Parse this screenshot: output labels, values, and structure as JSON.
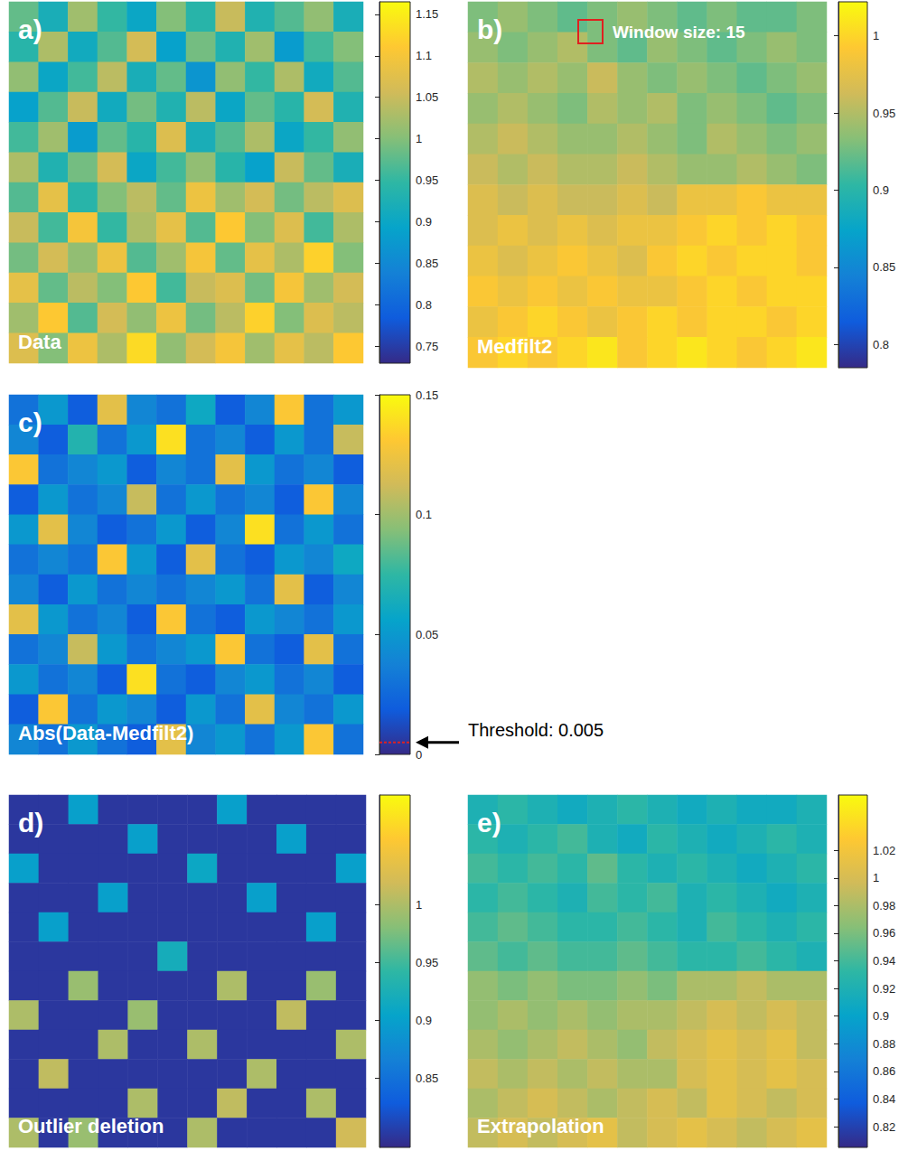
{
  "chart_data": [
    {
      "type": "heatmap",
      "panel": "a)",
      "title": "Data",
      "color_range": [
        0.73,
        1.165
      ],
      "color_ticks": [
        0.75,
        0.8,
        0.85,
        0.9,
        0.95,
        1,
        1.05,
        1.1,
        1.15
      ],
      "cells": [
        [
          0.98,
          0.92,
          1.02,
          0.95,
          0.9,
          1.0,
          0.94,
          1.05,
          0.93,
          0.97,
          1.01,
          0.92
        ],
        [
          0.94,
          1.03,
          0.91,
          0.97,
          1.06,
          0.89,
          0.99,
          0.93,
          1.02,
          0.88,
          0.96,
          1.0
        ],
        [
          1.01,
          0.9,
          0.96,
          1.04,
          0.92,
          0.98,
          0.87,
          1.01,
          0.95,
          1.03,
          0.91,
          0.97
        ],
        [
          0.89,
          0.97,
          1.05,
          0.91,
          0.99,
          0.93,
          1.04,
          0.9,
          0.98,
          0.94,
          1.06,
          0.93
        ],
        [
          0.96,
          1.02,
          0.88,
          0.98,
          0.94,
          1.07,
          0.92,
          0.97,
          1.03,
          0.9,
          0.95,
          1.01
        ],
        [
          1.03,
          0.93,
          0.99,
          1.06,
          0.9,
          0.96,
          1.01,
          0.94,
          0.89,
          1.05,
          0.98,
          0.92
        ],
        [
          0.97,
          1.08,
          0.94,
          1.0,
          1.04,
          0.98,
          1.09,
          1.02,
          1.06,
          0.99,
          1.04,
          1.07
        ],
        [
          1.05,
          0.96,
          1.1,
          0.95,
          1.03,
          1.08,
          0.97,
          1.11,
          1.0,
          1.07,
          0.96,
          1.03
        ],
        [
          0.99,
          1.06,
          1.01,
          1.09,
          0.97,
          1.02,
          1.1,
          0.98,
          1.08,
          1.03,
          1.12,
          1.0
        ],
        [
          1.08,
          0.98,
          1.04,
          1.0,
          1.11,
          0.96,
          1.05,
          1.07,
          0.99,
          1.1,
          1.02,
          1.06
        ],
        [
          1.02,
          1.11,
          0.97,
          1.06,
          1.01,
          1.09,
          0.99,
          1.04,
          1.12,
          1.0,
          1.07,
          1.04
        ],
        [
          1.07,
          1.0,
          1.09,
          1.03,
          1.13,
          1.01,
          1.06,
          1.1,
          1.02,
          1.08,
          1.04,
          1.11
        ]
      ]
    },
    {
      "type": "heatmap",
      "panel": "b)",
      "title": "Medfilt2",
      "annotation": "Window size: 15",
      "color_range": [
        0.785,
        1.022
      ],
      "color_ticks": [
        0.8,
        0.85,
        0.9,
        0.95,
        1
      ],
      "cells": [
        [
          0.93,
          0.94,
          0.93,
          0.92,
          0.93,
          0.94,
          0.93,
          0.92,
          0.93,
          0.92,
          0.92,
          0.93
        ],
        [
          0.94,
          0.93,
          0.94,
          0.95,
          0.93,
          0.92,
          0.94,
          0.93,
          0.92,
          0.93,
          0.94,
          0.93
        ],
        [
          0.95,
          0.94,
          0.95,
          0.94,
          0.96,
          0.94,
          0.93,
          0.94,
          0.93,
          0.92,
          0.93,
          0.94
        ],
        [
          0.94,
          0.95,
          0.94,
          0.93,
          0.95,
          0.94,
          0.95,
          0.93,
          0.94,
          0.93,
          0.92,
          0.93
        ],
        [
          0.95,
          0.96,
          0.95,
          0.94,
          0.94,
          0.95,
          0.94,
          0.93,
          0.95,
          0.94,
          0.93,
          0.94
        ],
        [
          0.96,
          0.95,
          0.96,
          0.95,
          0.95,
          0.96,
          0.95,
          0.94,
          0.94,
          0.95,
          0.94,
          0.93
        ],
        [
          0.97,
          0.96,
          0.97,
          0.96,
          0.96,
          0.97,
          0.96,
          0.98,
          0.98,
          0.99,
          0.98,
          0.98
        ],
        [
          0.97,
          0.98,
          0.97,
          0.98,
          0.97,
          0.98,
          0.98,
          0.99,
          1.0,
          0.99,
          1.0,
          0.99
        ],
        [
          0.98,
          0.97,
          0.98,
          0.99,
          0.98,
          0.97,
          0.99,
          1.0,
          0.99,
          1.0,
          1.0,
          0.99
        ],
        [
          0.99,
          0.98,
          0.99,
          0.98,
          0.99,
          0.98,
          0.98,
          0.99,
          1.0,
          0.99,
          1.0,
          1.0
        ],
        [
          0.98,
          0.99,
          1.0,
          0.99,
          0.98,
          0.99,
          1.0,
          0.99,
          1.0,
          1.0,
          0.99,
          1.0
        ],
        [
          0.99,
          1.0,
          0.99,
          1.0,
          1.01,
          0.99,
          1.0,
          1.01,
          1.0,
          0.99,
          1.0,
          1.01
        ]
      ]
    },
    {
      "type": "heatmap",
      "panel": "c)",
      "title": "Abs(Data-Medfilt2)",
      "threshold": {
        "label": "Threshold: 0.005",
        "value": 0.005
      },
      "color_range": [
        0,
        0.15
      ],
      "color_ticks": [
        0,
        0.05,
        0.1,
        0.15
      ],
      "cells": [
        [
          0.03,
          0.05,
          0.02,
          0.12,
          0.04,
          0.03,
          0.06,
          0.02,
          0.04,
          0.13,
          0.03,
          0.05
        ],
        [
          0.04,
          0.02,
          0.07,
          0.03,
          0.05,
          0.14,
          0.03,
          0.04,
          0.02,
          0.05,
          0.03,
          0.11
        ],
        [
          0.13,
          0.03,
          0.04,
          0.05,
          0.02,
          0.04,
          0.03,
          0.12,
          0.05,
          0.03,
          0.04,
          0.02
        ],
        [
          0.02,
          0.05,
          0.03,
          0.04,
          0.11,
          0.03,
          0.05,
          0.03,
          0.04,
          0.02,
          0.13,
          0.04
        ],
        [
          0.05,
          0.12,
          0.04,
          0.02,
          0.03,
          0.05,
          0.02,
          0.04,
          0.14,
          0.03,
          0.05,
          0.03
        ],
        [
          0.03,
          0.04,
          0.03,
          0.13,
          0.05,
          0.02,
          0.12,
          0.03,
          0.02,
          0.05,
          0.04,
          0.06
        ],
        [
          0.04,
          0.02,
          0.05,
          0.03,
          0.04,
          0.03,
          0.04,
          0.05,
          0.03,
          0.12,
          0.02,
          0.04
        ],
        [
          0.12,
          0.05,
          0.03,
          0.04,
          0.02,
          0.13,
          0.03,
          0.02,
          0.05,
          0.04,
          0.03,
          0.05
        ],
        [
          0.03,
          0.04,
          0.11,
          0.05,
          0.03,
          0.04,
          0.05,
          0.13,
          0.03,
          0.02,
          0.12,
          0.03
        ],
        [
          0.05,
          0.03,
          0.04,
          0.02,
          0.14,
          0.03,
          0.02,
          0.04,
          0.05,
          0.03,
          0.04,
          0.02
        ],
        [
          0.02,
          0.13,
          0.03,
          0.05,
          0.04,
          0.02,
          0.05,
          0.03,
          0.12,
          0.04,
          0.03,
          0.05
        ],
        [
          0.04,
          0.03,
          0.05,
          0.03,
          0.02,
          0.12,
          0.04,
          0.05,
          0.03,
          0.05,
          0.13,
          0.03
        ]
      ]
    },
    {
      "type": "heatmap",
      "panel": "d)",
      "title": "Outlier deletion",
      "color_range": [
        0.79,
        1.095
      ],
      "color_ticks": [
        0.85,
        0.9,
        0.95,
        1
      ],
      "cells": [
        [
          0.8,
          0.8,
          0.9,
          0.8,
          0.8,
          0.8,
          0.8,
          0.9,
          0.8,
          0.8,
          0.8,
          0.8
        ],
        [
          0.8,
          0.8,
          0.8,
          0.8,
          0.9,
          0.8,
          0.8,
          0.8,
          0.8,
          0.9,
          0.8,
          0.8
        ],
        [
          0.9,
          0.8,
          0.8,
          0.8,
          0.8,
          0.8,
          0.91,
          0.8,
          0.8,
          0.8,
          0.8,
          0.9
        ],
        [
          0.8,
          0.8,
          0.8,
          0.9,
          0.8,
          0.8,
          0.8,
          0.8,
          0.9,
          0.8,
          0.8,
          0.8
        ],
        [
          0.8,
          0.9,
          0.8,
          0.8,
          0.8,
          0.8,
          0.8,
          0.8,
          0.8,
          0.8,
          0.9,
          0.8
        ],
        [
          0.8,
          0.8,
          0.8,
          0.8,
          0.8,
          0.92,
          0.8,
          0.8,
          0.8,
          0.8,
          0.8,
          0.8
        ],
        [
          0.8,
          0.8,
          0.99,
          0.8,
          0.8,
          0.8,
          0.8,
          1.0,
          0.8,
          0.8,
          0.99,
          0.8
        ],
        [
          1.0,
          0.8,
          0.8,
          0.8,
          0.99,
          0.8,
          0.8,
          0.8,
          0.8,
          1.01,
          0.8,
          0.8
        ],
        [
          0.8,
          0.8,
          0.8,
          1.0,
          0.8,
          0.8,
          1.0,
          0.8,
          0.8,
          0.8,
          0.8,
          1.0
        ],
        [
          0.8,
          1.01,
          0.8,
          0.8,
          0.8,
          0.8,
          0.8,
          0.8,
          1.0,
          0.8,
          0.8,
          0.8
        ],
        [
          0.8,
          0.8,
          0.8,
          0.8,
          1.0,
          0.8,
          0.8,
          1.01,
          0.8,
          0.8,
          1.0,
          0.8
        ],
        [
          1.0,
          0.8,
          0.99,
          0.8,
          0.8,
          0.8,
          1.0,
          0.8,
          0.8,
          0.8,
          0.8,
          1.02
        ]
      ]
    },
    {
      "type": "heatmap",
      "panel": "e)",
      "title": "Extrapolation",
      "color_range": [
        0.805,
        1.06
      ],
      "color_ticks": [
        0.82,
        0.84,
        0.86,
        0.88,
        0.9,
        0.92,
        0.94,
        0.96,
        0.98,
        1,
        1.02
      ],
      "cells": [
        [
          0.92,
          0.93,
          0.92,
          0.91,
          0.92,
          0.93,
          0.92,
          0.91,
          0.92,
          0.91,
          0.91,
          0.92
        ],
        [
          0.93,
          0.92,
          0.93,
          0.94,
          0.92,
          0.91,
          0.93,
          0.92,
          0.91,
          0.92,
          0.93,
          0.92
        ],
        [
          0.94,
          0.93,
          0.94,
          0.93,
          0.95,
          0.93,
          0.92,
          0.93,
          0.92,
          0.91,
          0.92,
          0.93
        ],
        [
          0.93,
          0.94,
          0.93,
          0.92,
          0.94,
          0.93,
          0.94,
          0.92,
          0.93,
          0.92,
          0.91,
          0.92
        ],
        [
          0.94,
          0.95,
          0.94,
          0.93,
          0.93,
          0.94,
          0.93,
          0.92,
          0.94,
          0.93,
          0.92,
          0.93
        ],
        [
          0.95,
          0.94,
          0.95,
          0.94,
          0.94,
          0.95,
          0.94,
          0.93,
          0.93,
          0.94,
          0.93,
          0.92
        ],
        [
          0.97,
          0.96,
          0.97,
          0.96,
          0.96,
          0.97,
          0.96,
          0.98,
          0.98,
          0.99,
          0.98,
          0.98
        ],
        [
          0.97,
          0.98,
          0.97,
          0.98,
          0.97,
          0.98,
          0.98,
          0.99,
          1.0,
          0.99,
          1.0,
          0.99
        ],
        [
          0.98,
          0.97,
          0.98,
          0.99,
          0.98,
          0.97,
          0.99,
          1.0,
          1.01,
          1.0,
          1.01,
          0.99
        ],
        [
          0.99,
          0.98,
          0.99,
          0.98,
          0.99,
          0.98,
          0.98,
          1.0,
          1.01,
          1.0,
          1.01,
          1.0
        ],
        [
          0.98,
          0.99,
          1.0,
          0.99,
          0.98,
          0.99,
          1.0,
          0.99,
          1.01,
          1.0,
          0.99,
          1.0
        ],
        [
          0.99,
          1.0,
          0.99,
          1.0,
          1.01,
          0.99,
          1.0,
          1.01,
          1.0,
          0.99,
          1.0,
          1.01
        ]
      ]
    }
  ]
}
